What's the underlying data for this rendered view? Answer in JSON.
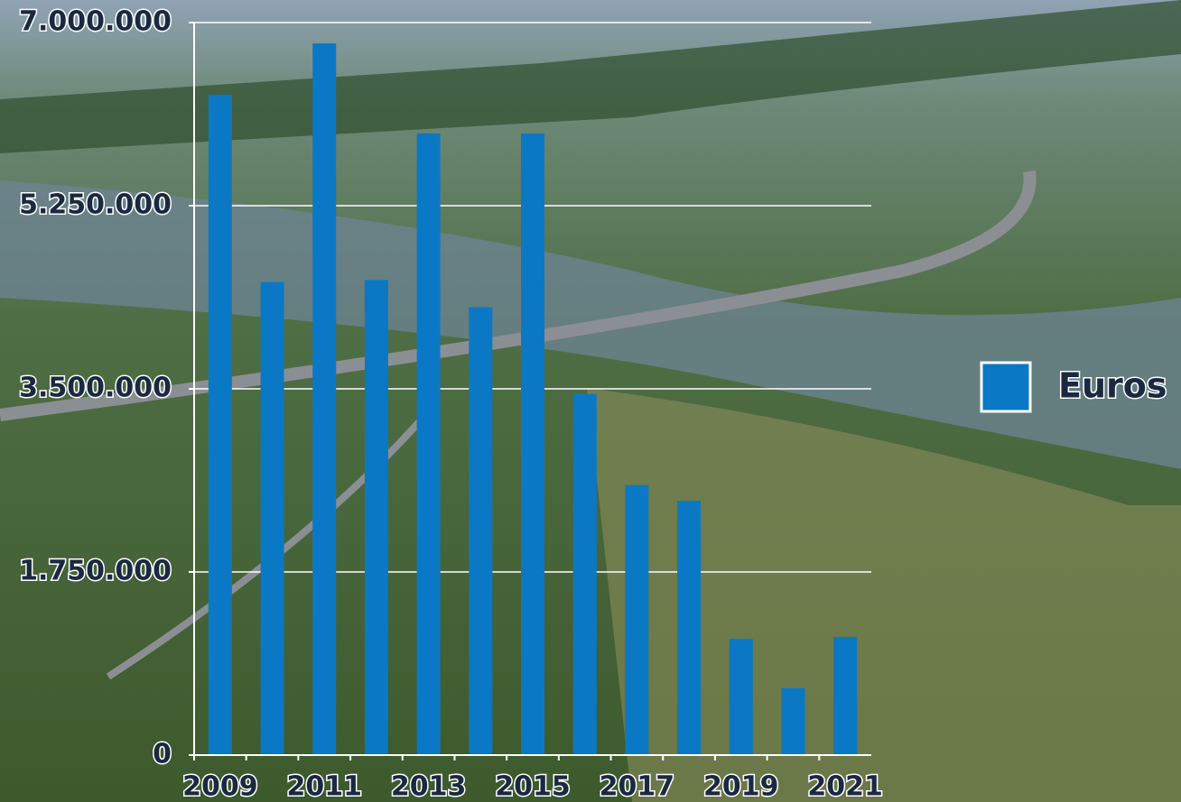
{
  "chart_data": {
    "type": "bar",
    "categories": [
      "2009",
      null,
      "2011",
      null,
      "2013",
      null,
      "2015",
      null,
      "2017",
      null,
      "2019",
      null,
      "2021"
    ],
    "series": [
      {
        "name": "Euros",
        "color": "#0b78c6",
        "values": [
          6310000,
          4520000,
          6800000,
          4540000,
          5940000,
          4280000,
          5940000,
          3450000,
          2580000,
          2430000,
          1110000,
          640000,
          1130000
        ]
      }
    ],
    "ylim": [
      0,
      7000000
    ],
    "yticks": [
      0,
      {
        "value": 1750000,
        "label": "1.750.000"
      },
      {
        "value": 3500000,
        "label": "3.500.000"
      },
      {
        "value": 5250000,
        "label": "5.250.000"
      },
      {
        "value": 7000000,
        "label": "7.000.000"
      }
    ],
    "grid": true,
    "legend": "right"
  }
}
